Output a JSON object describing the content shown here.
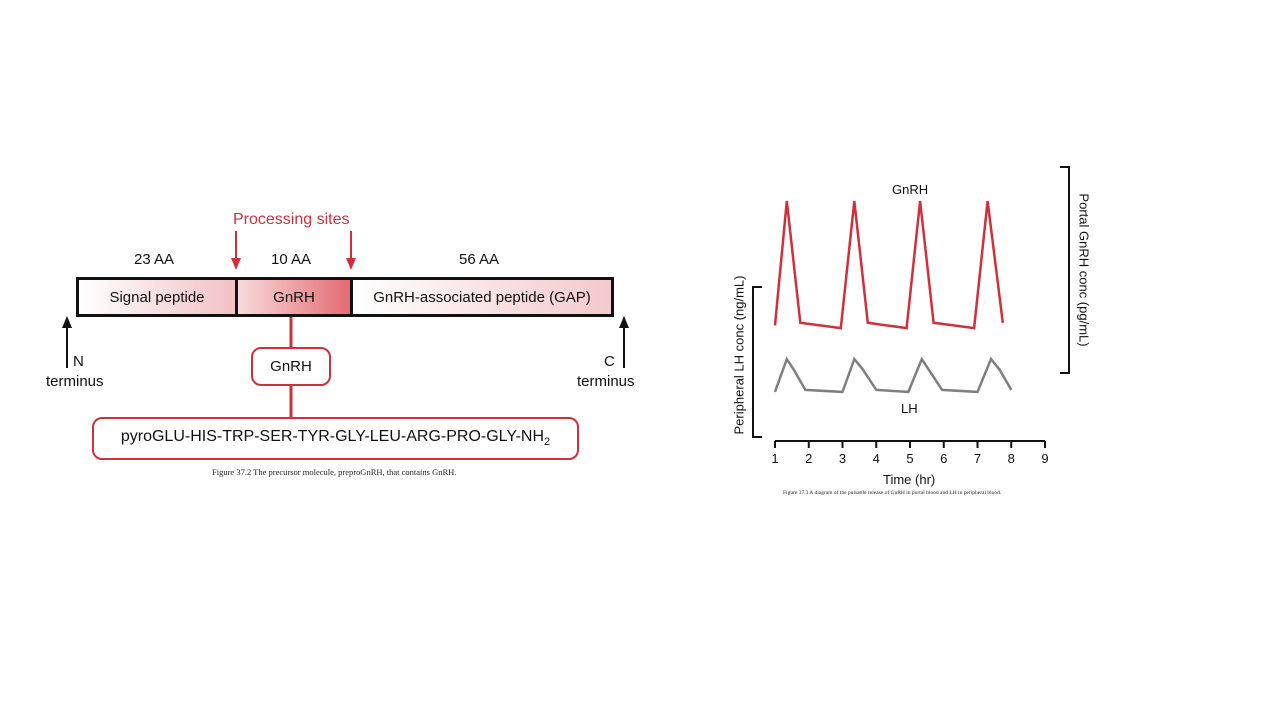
{
  "precursor": {
    "processing_label": "Processing sites",
    "aa_counts": [
      "23 AA",
      "10 AA",
      "56 AA"
    ],
    "segments": [
      "Signal peptide",
      "GnRH",
      "GnRH-associated peptide (GAP)"
    ],
    "n_label": "N",
    "c_label": "C",
    "terminus_label": "terminus",
    "gnrh_box": "GnRH",
    "sequence": "pyroGLU-HIS-TRP-SER-TYR-GLY-LEU-ARG-PRO-GLY-NH",
    "sequence_sub": "2",
    "caption": "Figure 37.2 The precursor molecule, preproGnRH, that contains GnRH."
  },
  "colors": {
    "accent_red": "#d0303b",
    "lh_gray": "#7f7f7f"
  },
  "chart_data": {
    "type": "line",
    "xlabel": "Time (hr)",
    "ylabel_left": "Peripheral LH conc (ng/mL)",
    "ylabel_right": "Portal GnRH conc (pg/mL)",
    "xlim": [
      1,
      9
    ],
    "xticks": [
      "1",
      "2",
      "3",
      "4",
      "5",
      "6",
      "7",
      "8",
      "9"
    ],
    "series": [
      {
        "name": "GnRH",
        "color": "#d0303b",
        "x": [
          1.0,
          1.35,
          1.75,
          2.95,
          3.35,
          3.75,
          4.9,
          5.3,
          5.7,
          6.9,
          7.3,
          7.75
        ],
        "y": [
          0.05,
          1.0,
          0.07,
          0.03,
          1.0,
          0.07,
          0.03,
          1.0,
          0.07,
          0.03,
          1.0,
          0.07
        ]
      },
      {
        "name": "LH",
        "color": "#7f7f7f",
        "x": [
          1.0,
          1.35,
          1.55,
          1.9,
          3.0,
          3.35,
          3.6,
          4.0,
          4.95,
          5.35,
          5.55,
          5.95,
          7.0,
          7.4,
          7.65,
          8.0
        ],
        "y": [
          0.05,
          0.85,
          0.6,
          0.1,
          0.05,
          0.85,
          0.6,
          0.1,
          0.05,
          0.85,
          0.6,
          0.1,
          0.05,
          0.85,
          0.6,
          0.1
        ]
      }
    ],
    "caption": "Figure 37.3 A diagram of the pulsatile release of GnRH in portal blood and LH in peripheral blood."
  }
}
